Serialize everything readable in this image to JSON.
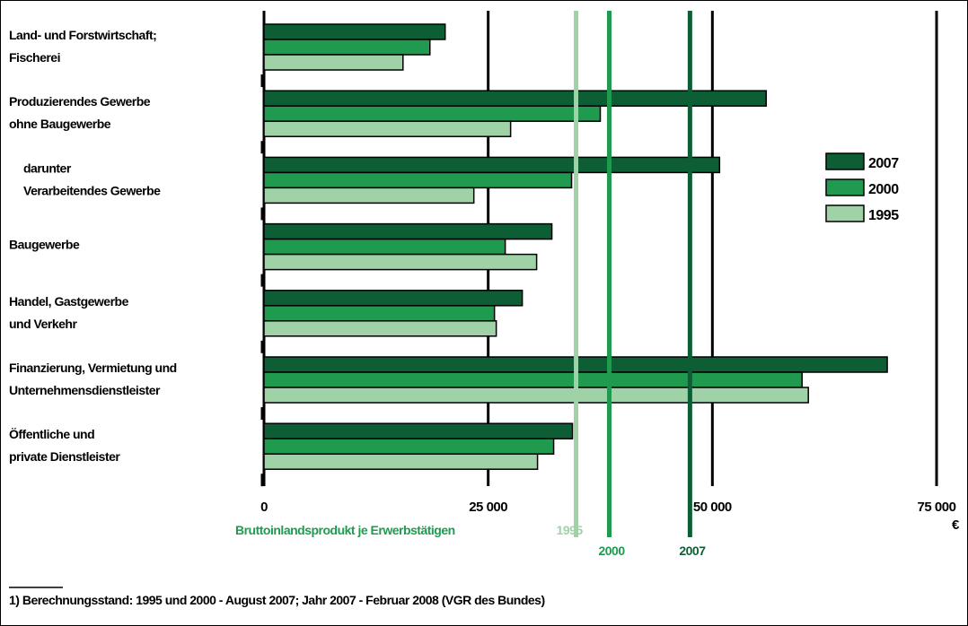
{
  "chart_data": {
    "type": "bar",
    "orientation": "horizontal",
    "categories": [
      [
        "Land- und Forstwirtschaft;",
        "Fischerei"
      ],
      [
        "Produzierendes Gewerbe",
        "ohne Baugewerbe"
      ],
      [
        "darunter",
        "Verarbeitendes Gewerbe"
      ],
      [
        "Baugewerbe"
      ],
      [
        "Handel, Gastgewerbe",
        "und Verkehr"
      ],
      [
        "Finanzierung, Vermietung und",
        "Unternehmensdienstleister"
      ],
      [
        "Öffentliche und",
        "private Dienstleister"
      ]
    ],
    "series": [
      {
        "name": "2007",
        "color": "#0d5e34",
        "values": [
          20200,
          56000,
          50800,
          32100,
          28800,
          69500,
          34400
        ]
      },
      {
        "name": "2000",
        "color": "#1f9a4e",
        "values": [
          18500,
          37500,
          34300,
          26900,
          25700,
          60000,
          32300
        ]
      },
      {
        "name": "1995",
        "color": "#9fd3a7",
        "values": [
          15500,
          27500,
          23400,
          30400,
          25900,
          60700,
          30500
        ]
      }
    ],
    "xlim": [
      0,
      75000
    ],
    "xticks": [
      0,
      25000,
      50000,
      75000
    ],
    "xtick_labels": [
      "0",
      "25 000",
      "50 000",
      "75 000"
    ],
    "unit": "€",
    "grid": true,
    "legend_placement": "right",
    "reference_lines": {
      "title": "Bruttoinlandsprodukt je Erwerbstätigen",
      "lines": [
        {
          "label": "1995",
          "value": 34800,
          "color": "#9fd3a7"
        },
        {
          "label": "2000",
          "value": 38500,
          "color": "#1f9a4e"
        },
        {
          "label": "2007",
          "value": 47500,
          "color": "#0d5e34"
        }
      ]
    },
    "footnote": "1) Berechnungsstand: 1995 und 2000 - August 2007; Jahr 2007 - Februar 2008 (VGR des Bundes)"
  }
}
